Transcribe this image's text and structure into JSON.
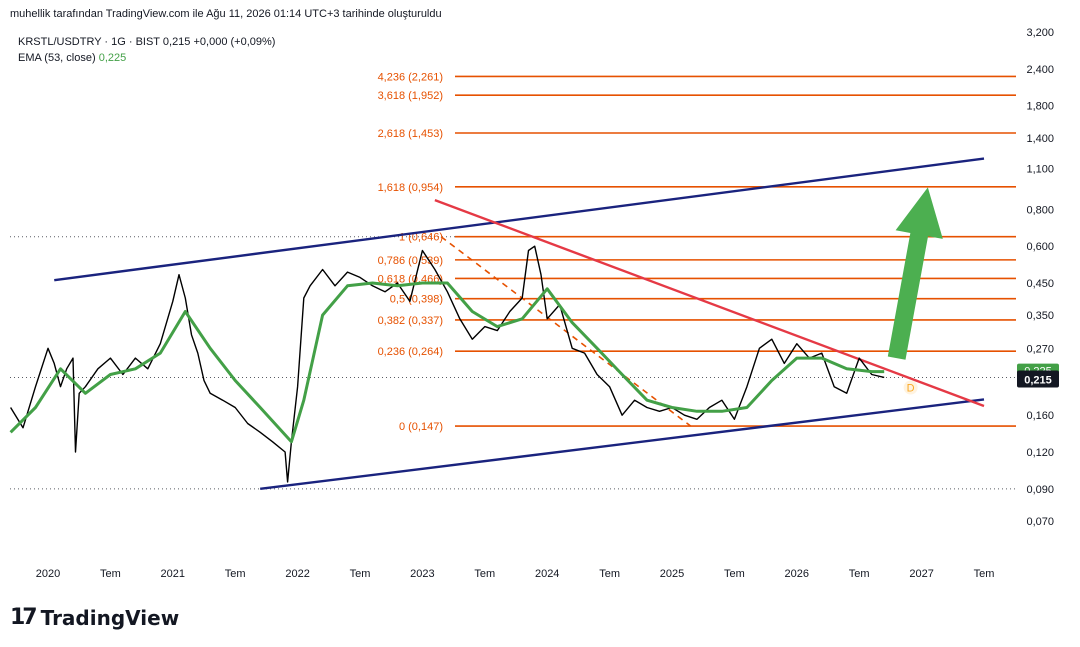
{
  "header": {
    "attribution": "muhellik tarafından TradingView.com ile Ağu 11, 2026 01:14 UTC+3 tarihinde oluşturuldu"
  },
  "legend": {
    "symbol": "KRSTL/USDTRY · 1G · BIST",
    "price": "0,215",
    "change": "+0,000 (+0,09%)",
    "ema_label": "EMA (53, close)",
    "ema_value": "0,225"
  },
  "brand": {
    "logo": "17",
    "name": "TradingView"
  },
  "colors": {
    "price_line": "#000000",
    "ema": "#43a047",
    "channel": "#1a237e",
    "downtrend": "#e53945",
    "fib": "#e65100",
    "arrow": "#4caf50",
    "price_tag_bg": "#131722"
  },
  "chart_data": {
    "type": "line",
    "y_scale": "log",
    "x_ticks": [
      "2020",
      "Tem",
      "2021",
      "Tem",
      "2022",
      "Tem",
      "2023",
      "Tem",
      "2024",
      "Tem",
      "2025",
      "Tem",
      "2026",
      "Tem",
      "2027",
      "Tem"
    ],
    "y_ticks": [
      "3,200",
      "2,400",
      "1,800",
      "1,400",
      "1,100",
      "0,800",
      "0,600",
      "0,450",
      "0,350",
      "0,270",
      "0,160",
      "0,120",
      "0,090",
      "0,070"
    ],
    "y_tick_values": [
      3.2,
      2.4,
      1.8,
      1.4,
      1.1,
      0.8,
      0.6,
      0.45,
      0.35,
      0.27,
      0.16,
      0.12,
      0.09,
      0.07
    ],
    "ylim": [
      0.056,
      3.2
    ],
    "xlim": [
      2019.7,
      2027.5
    ],
    "last_price": "0,215",
    "ema_tag": "0,225",
    "fibonacci": [
      {
        "label": "4,236 (2,261)",
        "ratio": 4.236,
        "value": 2.261
      },
      {
        "label": "3,618 (1,952)",
        "ratio": 3.618,
        "value": 1.952
      },
      {
        "label": "2,618 (1,453)",
        "ratio": 2.618,
        "value": 1.453
      },
      {
        "label": "1,618 (0,954)",
        "ratio": 1.618,
        "value": 0.954
      },
      {
        "label": "1 (0,646)",
        "ratio": 1,
        "value": 0.646
      },
      {
        "label": "0,786 (0,539)",
        "ratio": 0.786,
        "value": 0.539
      },
      {
        "label": "0,618 (0,466)",
        "ratio": 0.618,
        "value": 0.466
      },
      {
        "label": "0,5 (0,398)",
        "ratio": 0.5,
        "value": 0.398
      },
      {
        "label": "0,382 (0,337)",
        "ratio": 0.382,
        "value": 0.337
      },
      {
        "label": "0,236 (0,264)",
        "ratio": 0.236,
        "value": 0.264
      },
      {
        "label": "0 (0,147)",
        "ratio": 0,
        "value": 0.147
      }
    ],
    "series": [
      {
        "name": "KRSTL/USDTRY",
        "x": [
          2019.7,
          2019.8,
          2019.9,
          2020.0,
          2020.05,
          2020.1,
          2020.15,
          2020.2,
          2020.22,
          2020.25,
          2020.3,
          2020.4,
          2020.5,
          2020.6,
          2020.7,
          2020.8,
          2020.9,
          2021.0,
          2021.05,
          2021.1,
          2021.15,
          2021.2,
          2021.25,
          2021.3,
          2021.4,
          2021.5,
          2021.6,
          2021.7,
          2021.8,
          2021.9,
          2021.92,
          2021.95,
          2022.0,
          2022.05,
          2022.1,
          2022.2,
          2022.3,
          2022.4,
          2022.5,
          2022.6,
          2022.7,
          2022.8,
          2022.9,
          2023.0,
          2023.1,
          2023.2,
          2023.3,
          2023.4,
          2023.5,
          2023.6,
          2023.7,
          2023.8,
          2023.85,
          2023.9,
          2023.95,
          2024.0,
          2024.1,
          2024.2,
          2024.3,
          2024.4,
          2024.5,
          2024.6,
          2024.7,
          2024.8,
          2024.9,
          2025.0,
          2025.1,
          2025.2,
          2025.3,
          2025.4,
          2025.5,
          2025.6,
          2025.7,
          2025.8,
          2025.9,
          2026.0,
          2026.1,
          2026.2,
          2026.3,
          2026.4,
          2026.5,
          2026.6,
          2026.7
        ],
        "values": [
          0.17,
          0.145,
          0.2,
          0.27,
          0.24,
          0.2,
          0.23,
          0.25,
          0.12,
          0.19,
          0.2,
          0.23,
          0.25,
          0.22,
          0.25,
          0.23,
          0.28,
          0.39,
          0.48,
          0.4,
          0.3,
          0.26,
          0.21,
          0.19,
          0.18,
          0.17,
          0.15,
          0.14,
          0.13,
          0.12,
          0.095,
          0.13,
          0.2,
          0.4,
          0.44,
          0.5,
          0.44,
          0.49,
          0.47,
          0.44,
          0.42,
          0.45,
          0.39,
          0.58,
          0.5,
          0.42,
          0.34,
          0.29,
          0.32,
          0.31,
          0.36,
          0.4,
          0.58,
          0.6,
          0.48,
          0.34,
          0.38,
          0.27,
          0.26,
          0.22,
          0.2,
          0.16,
          0.18,
          0.17,
          0.165,
          0.17,
          0.16,
          0.155,
          0.17,
          0.18,
          0.155,
          0.2,
          0.27,
          0.29,
          0.24,
          0.28,
          0.25,
          0.26,
          0.2,
          0.19,
          0.25,
          0.22,
          0.215
        ]
      },
      {
        "name": "EMA (53, close)",
        "x": [
          2019.7,
          2019.9,
          2020.1,
          2020.3,
          2020.5,
          2020.7,
          2020.9,
          2021.1,
          2021.3,
          2021.5,
          2021.7,
          2021.95,
          2022.05,
          2022.2,
          2022.4,
          2022.6,
          2022.8,
          2023.0,
          2023.2,
          2023.4,
          2023.6,
          2023.8,
          2024.0,
          2024.2,
          2024.4,
          2024.6,
          2024.8,
          2025.0,
          2025.2,
          2025.4,
          2025.6,
          2025.8,
          2026.0,
          2026.2,
          2026.4,
          2026.6,
          2026.7
        ],
        "values": [
          0.14,
          0.17,
          0.23,
          0.19,
          0.22,
          0.23,
          0.26,
          0.36,
          0.27,
          0.21,
          0.17,
          0.13,
          0.18,
          0.35,
          0.44,
          0.45,
          0.44,
          0.45,
          0.45,
          0.36,
          0.32,
          0.34,
          0.43,
          0.33,
          0.27,
          0.22,
          0.18,
          0.17,
          0.165,
          0.165,
          0.17,
          0.21,
          0.25,
          0.25,
          0.23,
          0.225,
          0.225
        ]
      }
    ],
    "annotations": [
      {
        "kind": "ascending-channel-upper",
        "from": {
          "x": 2020.05,
          "y": 0.46
        },
        "to": {
          "x": 2027.5,
          "y": 1.19
        }
      },
      {
        "kind": "ascending-channel-lower",
        "from": {
          "x": 2021.7,
          "y": 0.09
        },
        "to": {
          "x": 2027.5,
          "y": 0.181
        }
      },
      {
        "kind": "downtrend-line",
        "from": {
          "x": 2023.1,
          "y": 0.86
        },
        "to": {
          "x": 2027.5,
          "y": 0.172
        }
      },
      {
        "kind": "arrow-up",
        "from": {
          "x": 2026.8,
          "y": 0.25
        },
        "to": {
          "x": 2027.05,
          "y": 0.95
        }
      },
      {
        "kind": "fib-base-dashed",
        "from": {
          "x": 2023.15,
          "y": 0.646
        },
        "to": {
          "x": 2025.15,
          "y": 0.147
        }
      },
      {
        "kind": "pattern-label",
        "text": "D",
        "at": {
          "x": 2026.8,
          "y": 0.205
        }
      }
    ]
  }
}
